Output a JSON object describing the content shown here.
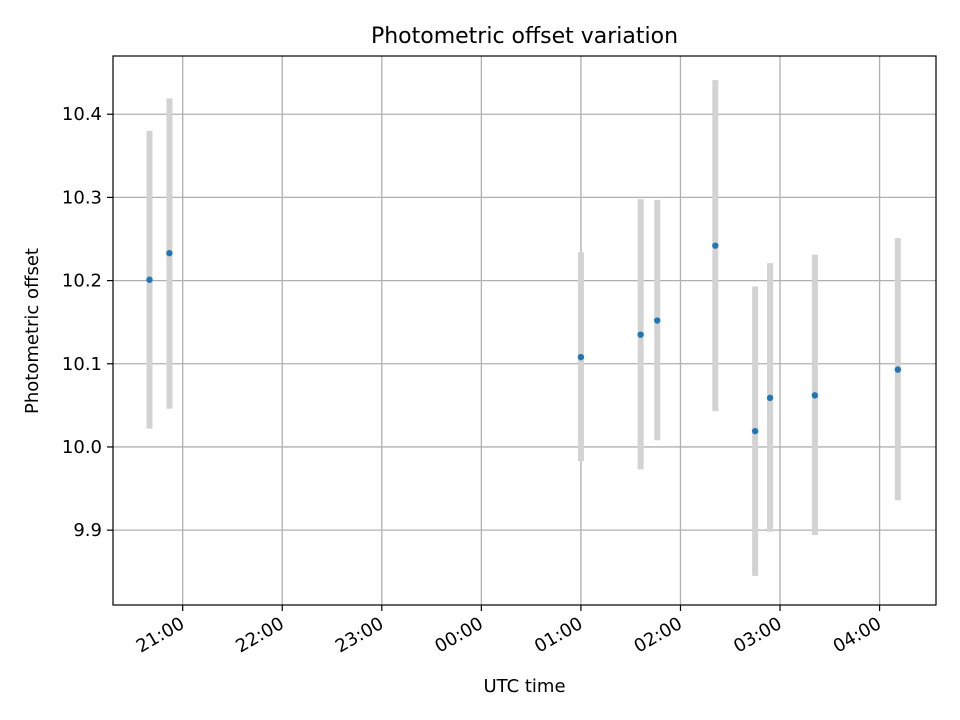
{
  "chart_data": {
    "type": "scatter",
    "title": "Photometric offset variation",
    "xlabel": "UTC time",
    "ylabel": "Photometric offset",
    "x_axis": {
      "type": "time",
      "range": [
        "2024-01-01T20:18",
        "2024-01-02T04:34"
      ],
      "ticks": [
        {
          "time": "2024-01-01T21:00",
          "label": "21:00"
        },
        {
          "time": "2024-01-01T22:00",
          "label": "22:00"
        },
        {
          "time": "2024-01-01T23:00",
          "label": "23:00"
        },
        {
          "time": "2024-01-02T00:00",
          "label": "00:00"
        },
        {
          "time": "2024-01-02T01:00",
          "label": "01:00"
        },
        {
          "time": "2024-01-02T02:00",
          "label": "02:00"
        },
        {
          "time": "2024-01-02T03:00",
          "label": "03:00"
        },
        {
          "time": "2024-01-02T04:00",
          "label": "04:00"
        }
      ],
      "tick_label_rotation": "30deg"
    },
    "y_axis": {
      "range": [
        9.81,
        10.47
      ],
      "ticks": [
        9.9,
        10.0,
        10.1,
        10.2,
        10.3,
        10.4
      ],
      "tick_labels": [
        "9.9",
        "10.0",
        "10.1",
        "10.2",
        "10.3",
        "10.4"
      ]
    },
    "grid": true,
    "marker_color": "#1f77b4",
    "errorbar_color": "#d3d3d3",
    "points": [
      {
        "time": "2024-01-01T20:40",
        "y": 10.201,
        "y_low": 10.022,
        "y_high": 10.38
      },
      {
        "time": "2024-01-01T20:52",
        "y": 10.233,
        "y_low": 10.046,
        "y_high": 10.419
      },
      {
        "time": "2024-01-02T01:00",
        "y": 10.108,
        "y_low": 9.983,
        "y_high": 10.234
      },
      {
        "time": "2024-01-02T01:36",
        "y": 10.135,
        "y_low": 9.973,
        "y_high": 10.298
      },
      {
        "time": "2024-01-02T01:46",
        "y": 10.152,
        "y_low": 10.008,
        "y_high": 10.297
      },
      {
        "time": "2024-01-02T02:21",
        "y": 10.242,
        "y_low": 10.043,
        "y_high": 10.441
      },
      {
        "time": "2024-01-02T02:45",
        "y": 10.019,
        "y_low": 9.845,
        "y_high": 10.193
      },
      {
        "time": "2024-01-02T02:54",
        "y": 10.059,
        "y_low": 9.898,
        "y_high": 10.221
      },
      {
        "time": "2024-01-02T03:21",
        "y": 10.062,
        "y_low": 9.894,
        "y_high": 10.231
      },
      {
        "time": "2024-01-02T04:11",
        "y": 10.093,
        "y_low": 9.936,
        "y_high": 10.251
      }
    ]
  }
}
